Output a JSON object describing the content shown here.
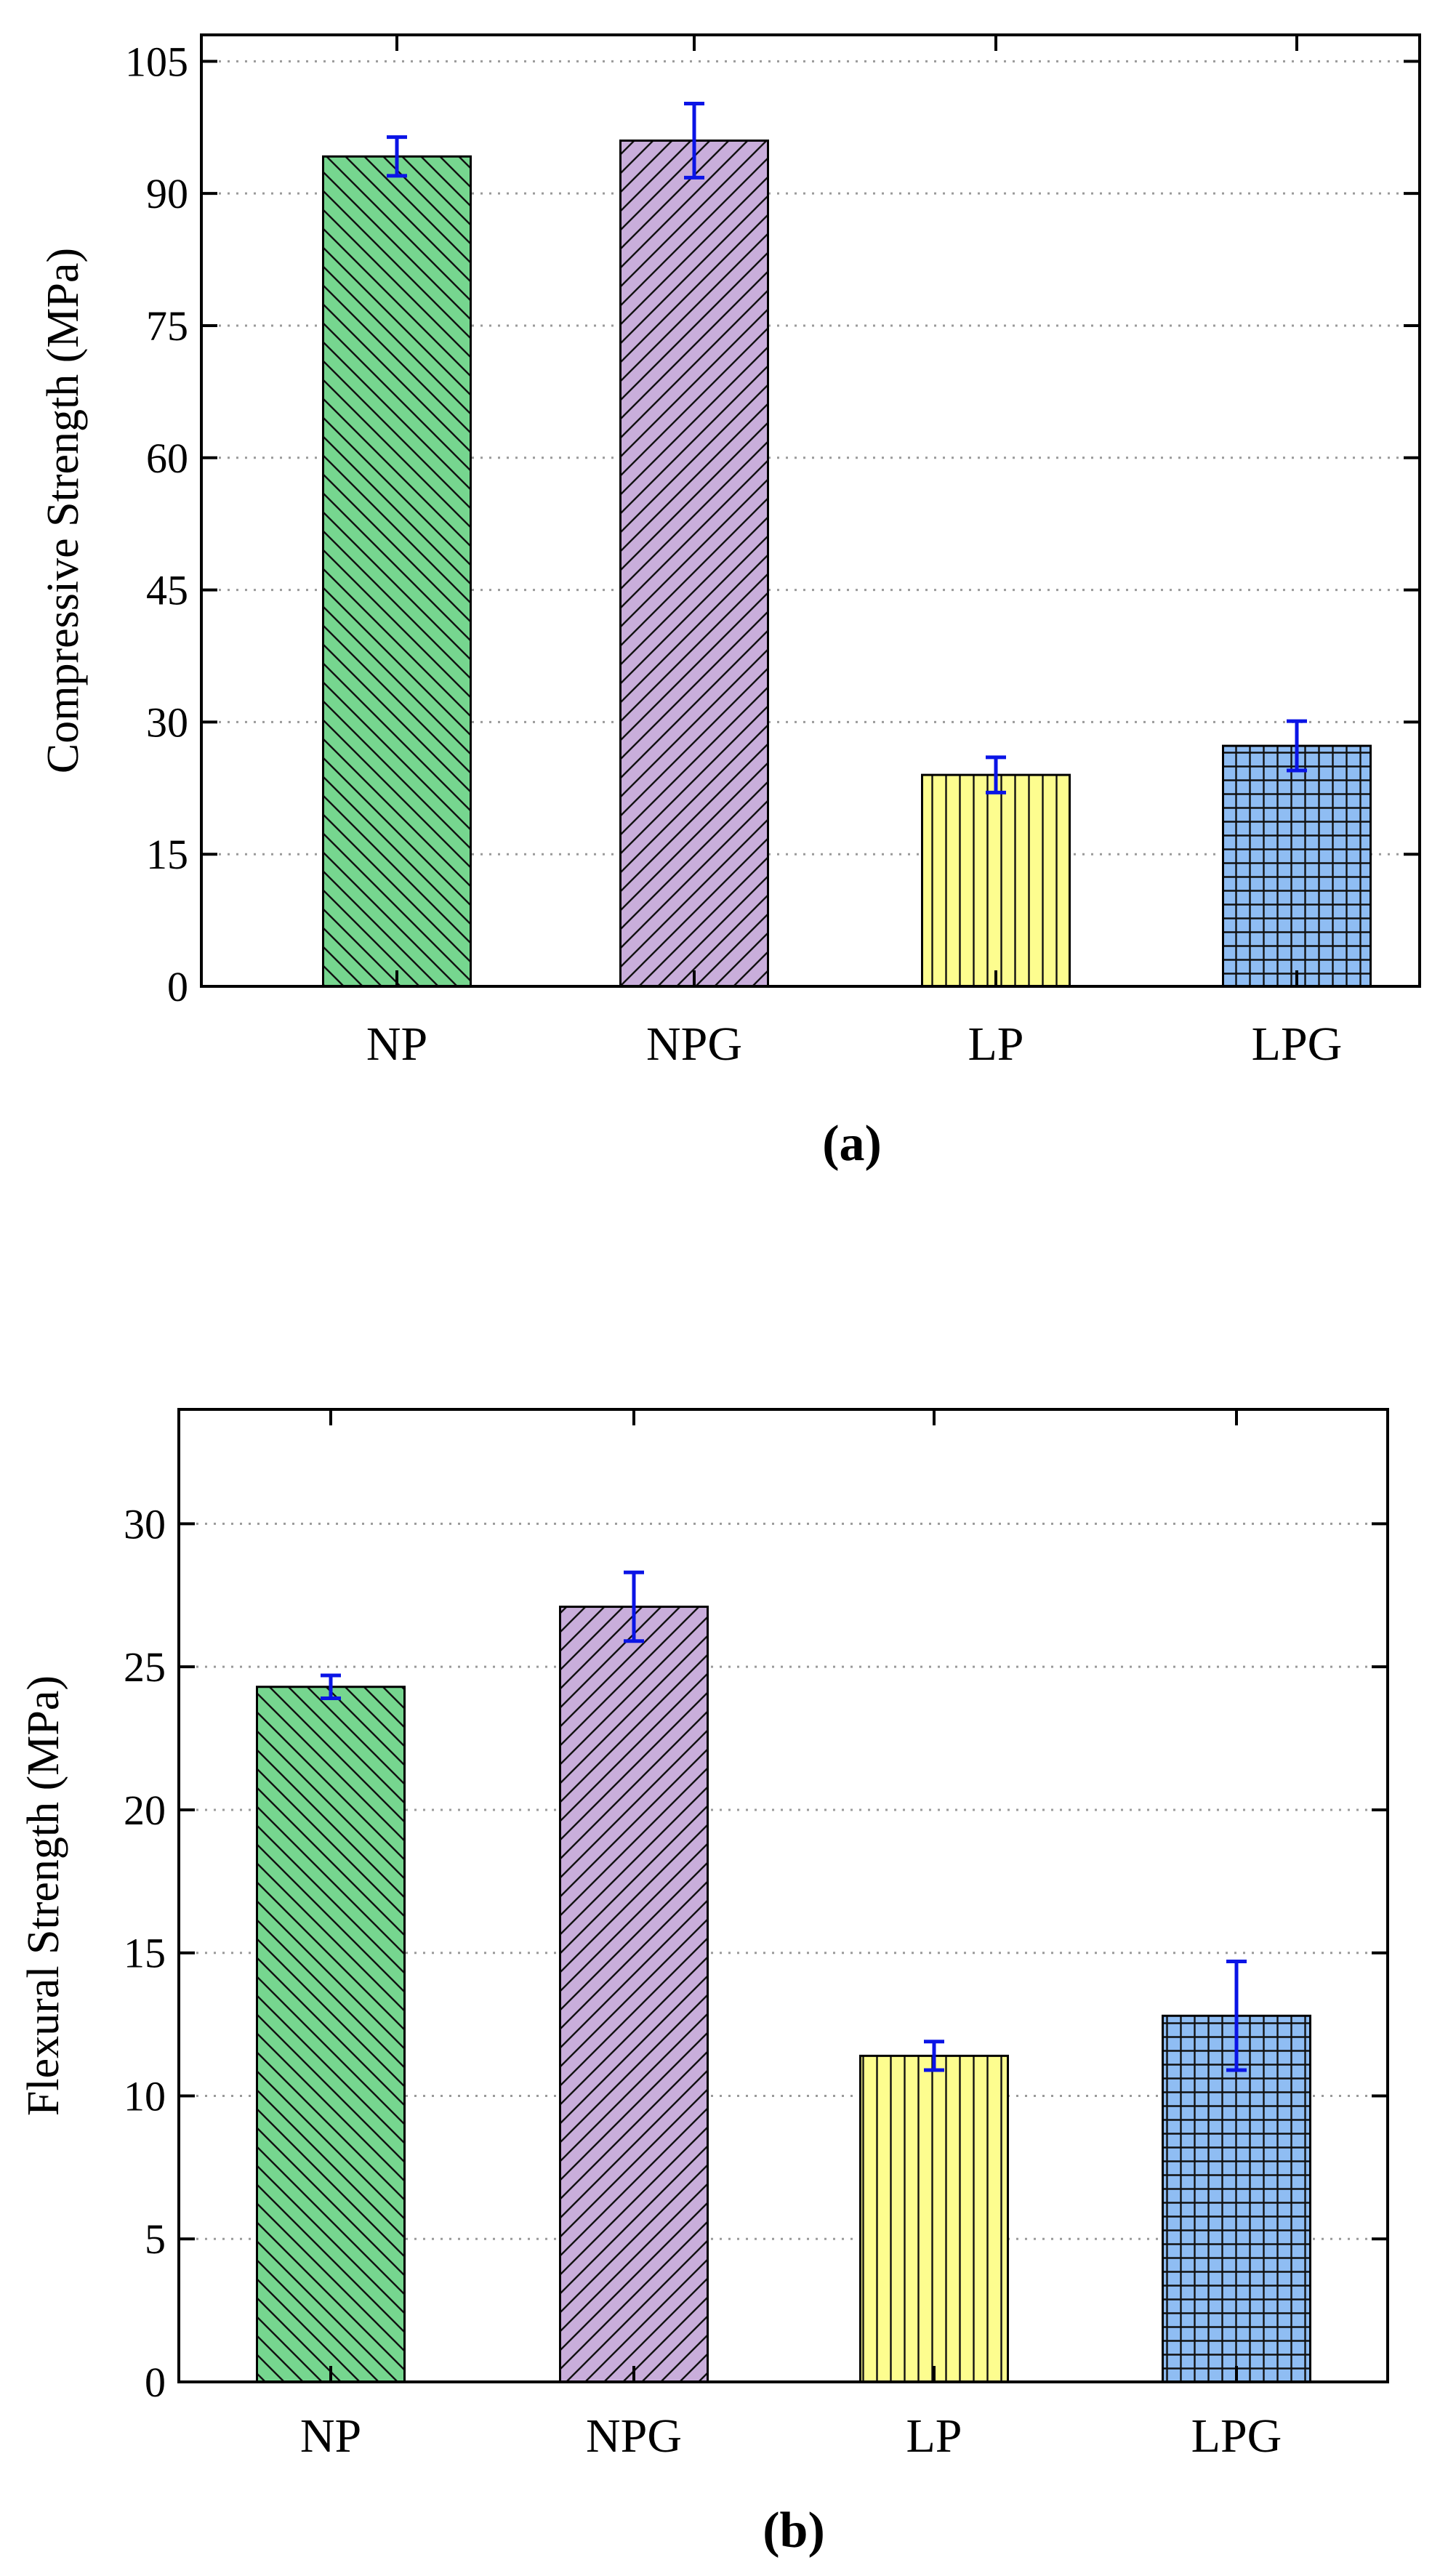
{
  "colors": {
    "NP": "#76d68f",
    "NPG": "#c9aedb",
    "LP": "#fdfd8f",
    "LPG": "#8fbdf3",
    "error_bar": "#0a14e6",
    "grid": "#9a9a9a"
  },
  "chart_data": [
    {
      "type": "bar",
      "panel_label": "(a)",
      "categories": [
        "NP",
        "NPG",
        "LP",
        "LPG"
      ],
      "values": [
        94.2,
        96.0,
        24.0,
        27.3
      ],
      "errors": [
        2.2,
        4.2,
        2.0,
        2.8
      ],
      "patterns": [
        "backslash",
        "slash",
        "vertical",
        "grid"
      ],
      "ylabel": "Compressive Strength (MPa)",
      "xlabel": "",
      "ylim": [
        0,
        108
      ],
      "yticks": [
        0,
        15,
        30,
        45,
        60,
        75,
        90,
        105
      ],
      "grid": "horizontal dotted",
      "legend": "none"
    },
    {
      "type": "bar",
      "panel_label": "(b)",
      "categories": [
        "NP",
        "NPG",
        "LP",
        "LPG"
      ],
      "values": [
        24.3,
        27.1,
        11.4,
        12.8
      ],
      "errors": [
        0.4,
        1.2,
        0.5,
        1.9
      ],
      "patterns": [
        "backslash",
        "slash",
        "vertical",
        "grid"
      ],
      "ylabel": "Flexural Strength (MPa)",
      "xlabel": "",
      "ylim": [
        0,
        34
      ],
      "yticks": [
        0,
        5,
        10,
        15,
        20,
        25,
        30
      ],
      "grid": "horizontal dotted",
      "legend": "none"
    }
  ]
}
